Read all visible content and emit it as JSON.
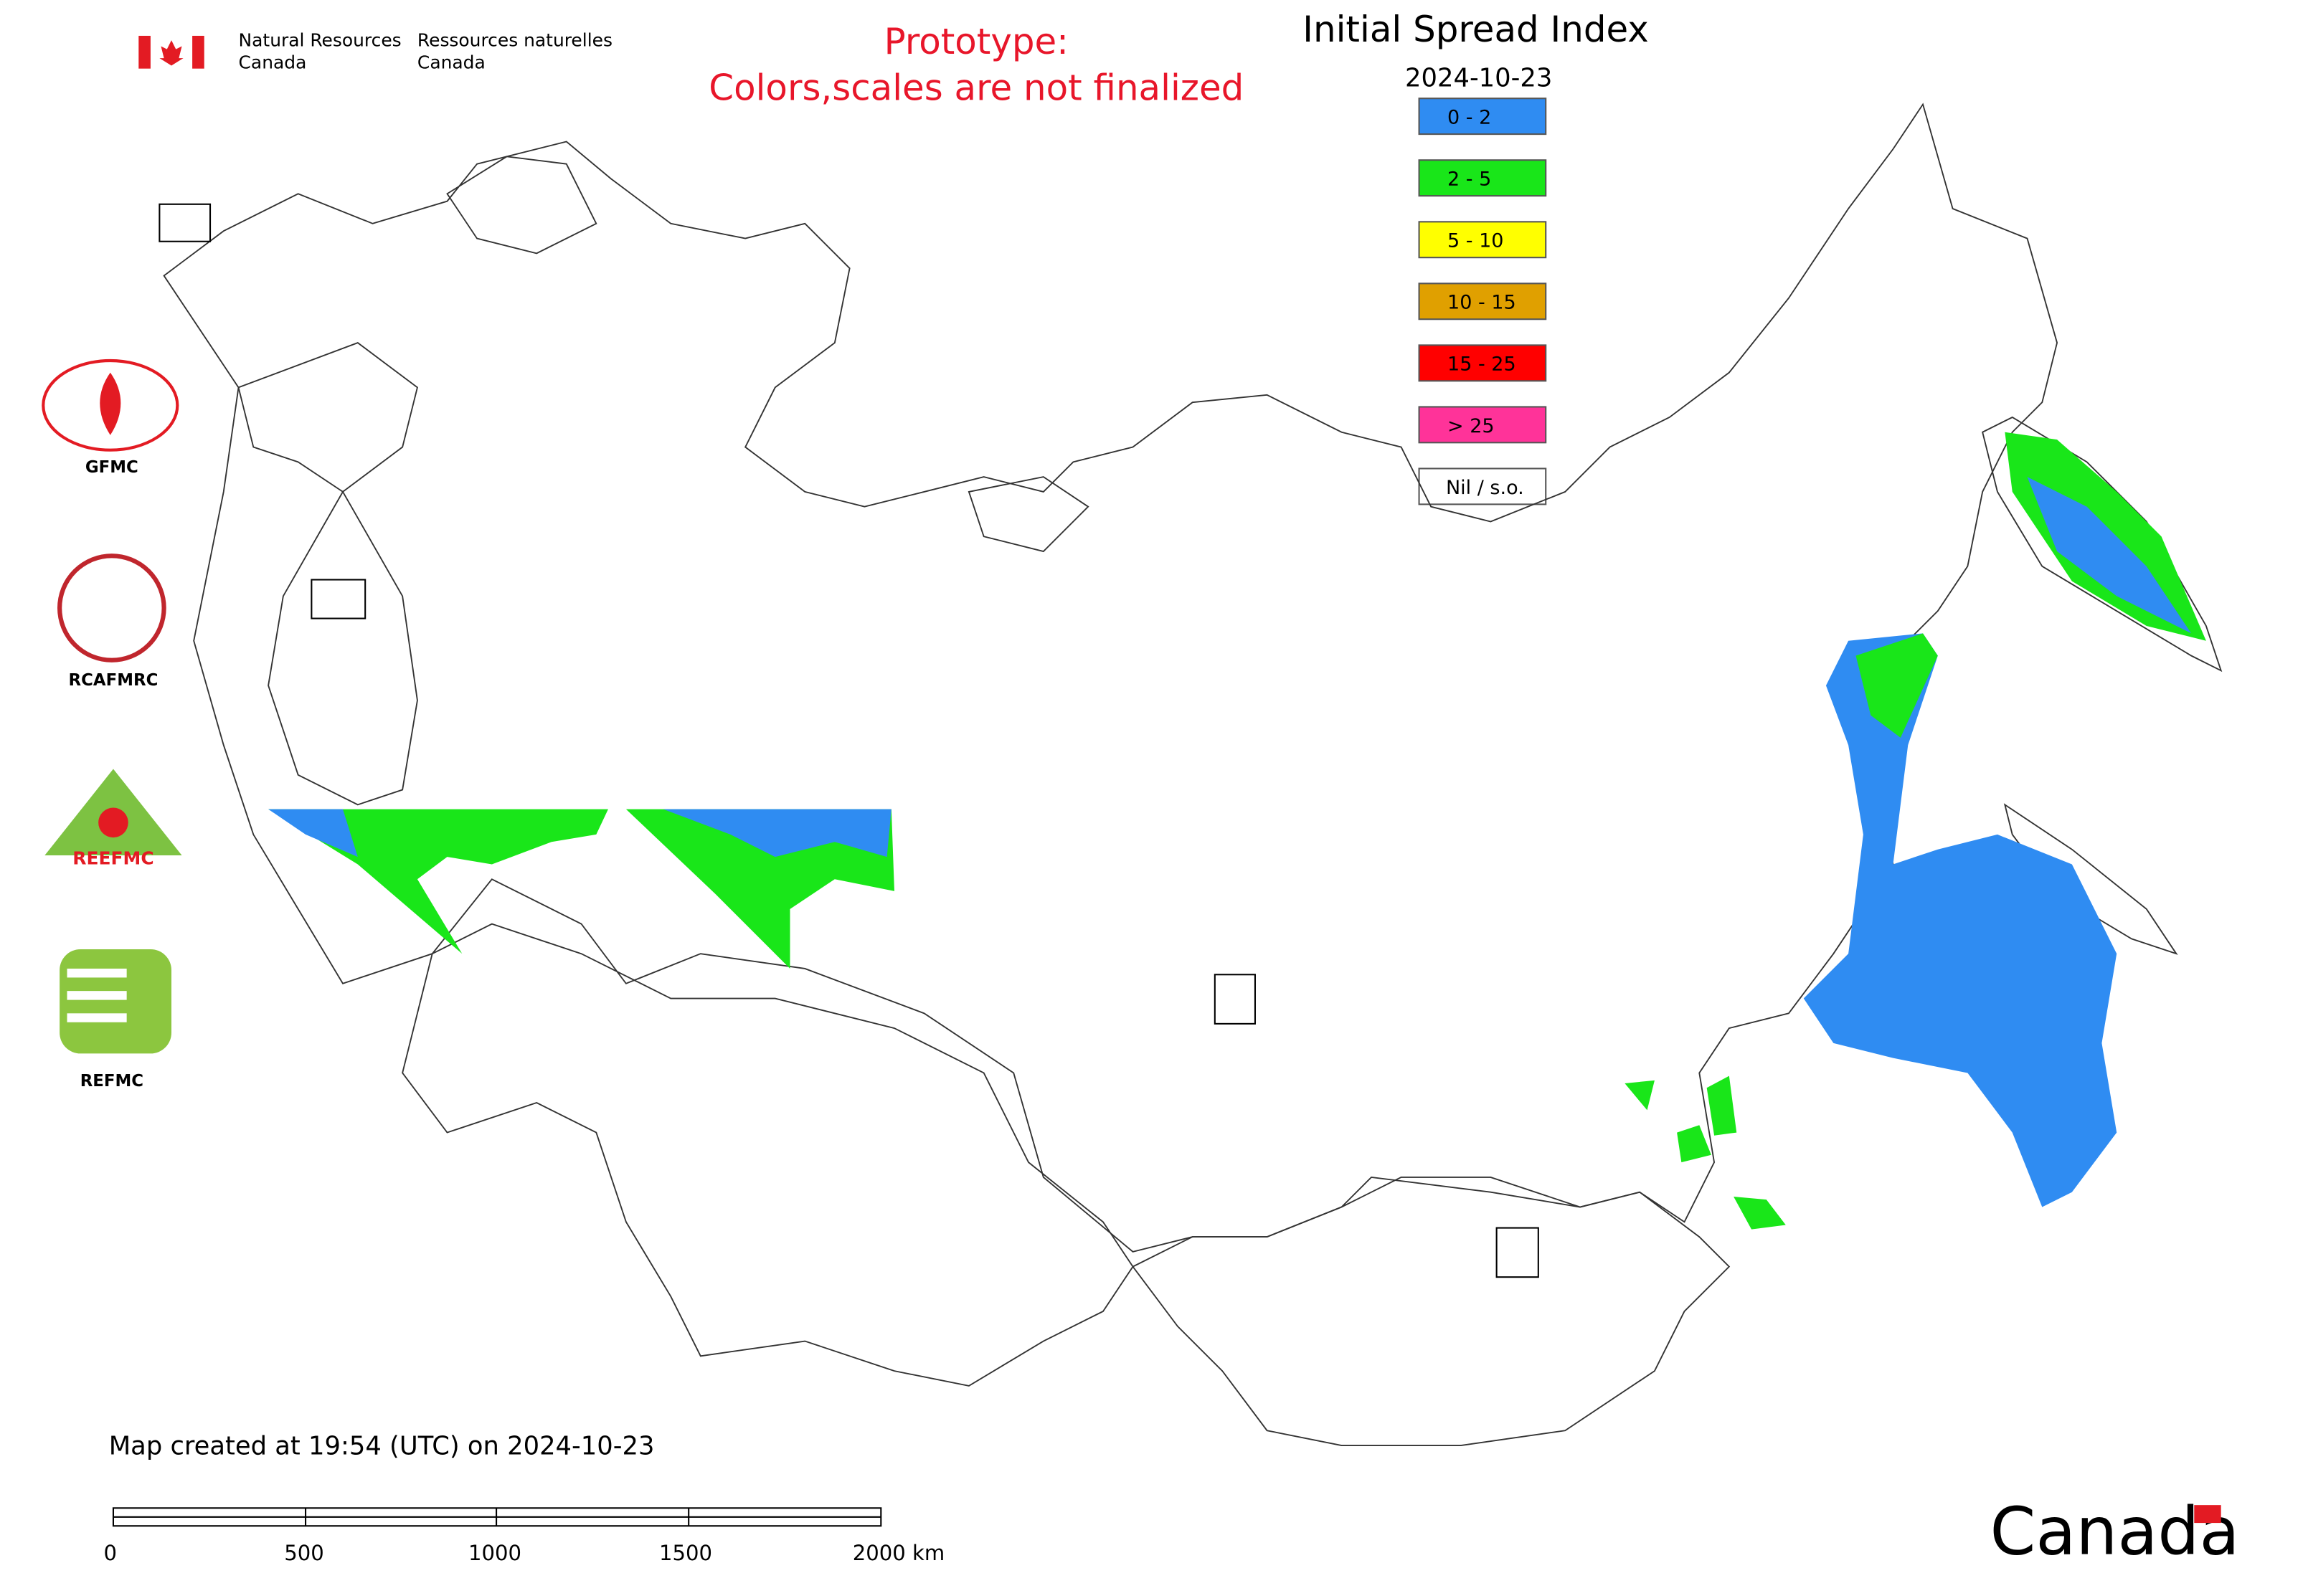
{
  "header": {
    "en": [
      "Natural Resources",
      "Canada"
    ],
    "fr": [
      "Ressources naturelles",
      "Canada"
    ]
  },
  "notice": [
    "Prototype:",
    "Colors,scales are not finalized"
  ],
  "title": "Initial Spread Index",
  "date": "2024-10-23",
  "legend": {
    "items": [
      {
        "label": "0 - 2",
        "color": "#2f8cf2"
      },
      {
        "label": "2 - 5",
        "color": "#19e619"
      },
      {
        "label": "5 - 10",
        "color": "#ffff00"
      },
      {
        "label": "10 - 15",
        "color": "#e0a000"
      },
      {
        "label": "15 - 25",
        "color": "#ff0000"
      },
      {
        "label": "> 25",
        "color": "#ff3399"
      },
      {
        "label": "Nil / s.o.",
        "color": "#ffffff"
      }
    ]
  },
  "logos": [
    "GFMC",
    "RCAFMRC",
    "REEFMC",
    "REFMC"
  ],
  "footer": "Map created at 19:54 (UTC) on 2024-10-23",
  "scale_bar": [
    "0",
    "500",
    "1000",
    "1500",
    "2000 km"
  ],
  "wordmark": "Canada"
}
